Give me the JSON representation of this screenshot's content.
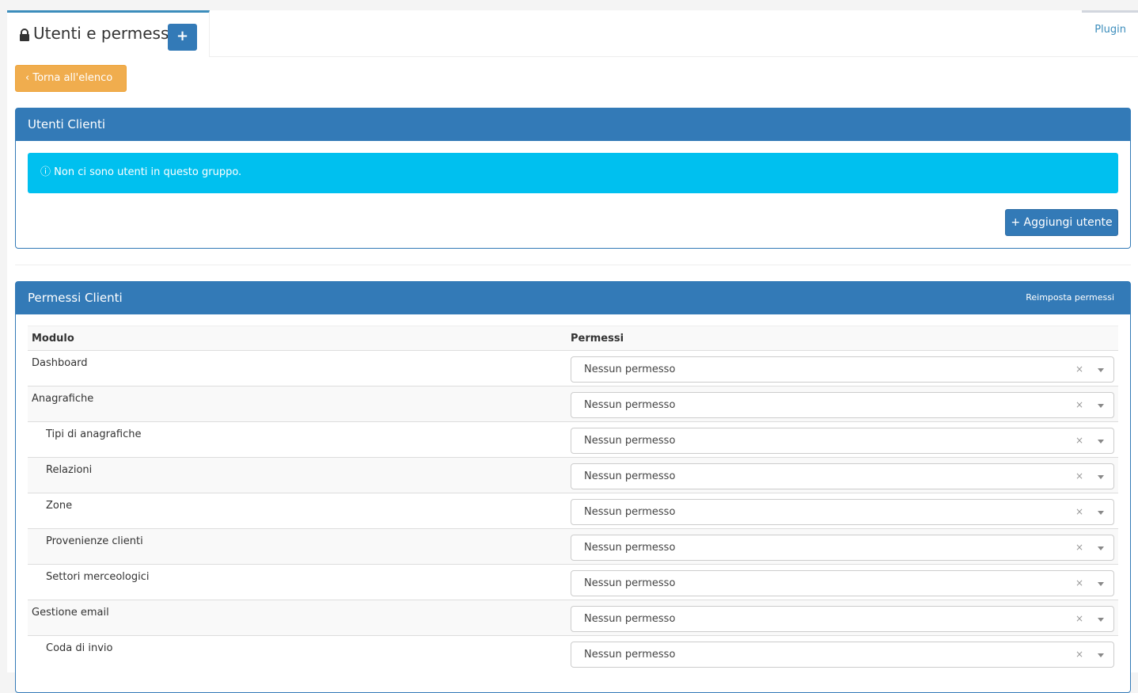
{
  "header": {
    "title": "Utenti e permessi",
    "add_icon": "plus-icon",
    "lock_icon": "lock-icon",
    "plugin_tab": "Plugin"
  },
  "back_button": "Torna all'elenco",
  "users_panel": {
    "title": "Utenti Clienti",
    "alert": "Non ci sono utenti in questo gruppo.",
    "add_button": "Aggiungi utente"
  },
  "permissions_panel": {
    "title": "Permessi Clienti",
    "reset": "Reimposta permessi",
    "columns": [
      "Modulo",
      "Permessi"
    ],
    "rows": [
      {
        "module": "Dashboard",
        "sub": false,
        "permission": "Nessun permesso"
      },
      {
        "module": "Anagrafiche",
        "sub": false,
        "permission": "Nessun permesso"
      },
      {
        "module": "Tipi di anagrafiche",
        "sub": true,
        "permission": "Nessun permesso"
      },
      {
        "module": "Relazioni",
        "sub": true,
        "permission": "Nessun permesso"
      },
      {
        "module": "Zone",
        "sub": true,
        "permission": "Nessun permesso"
      },
      {
        "module": "Provenienze clienti",
        "sub": true,
        "permission": "Nessun permesso"
      },
      {
        "module": "Settori merceologici",
        "sub": true,
        "permission": "Nessun permesso"
      },
      {
        "module": "Gestione email",
        "sub": false,
        "permission": "Nessun permesso"
      },
      {
        "module": "Coda di invio",
        "sub": true,
        "permission": "Nessun permesso"
      }
    ]
  },
  "colors": {
    "primary": "#337ab7",
    "warning": "#f0ad4e",
    "info": "#00c0ef",
    "tab_accent": "#3c8dbc"
  }
}
